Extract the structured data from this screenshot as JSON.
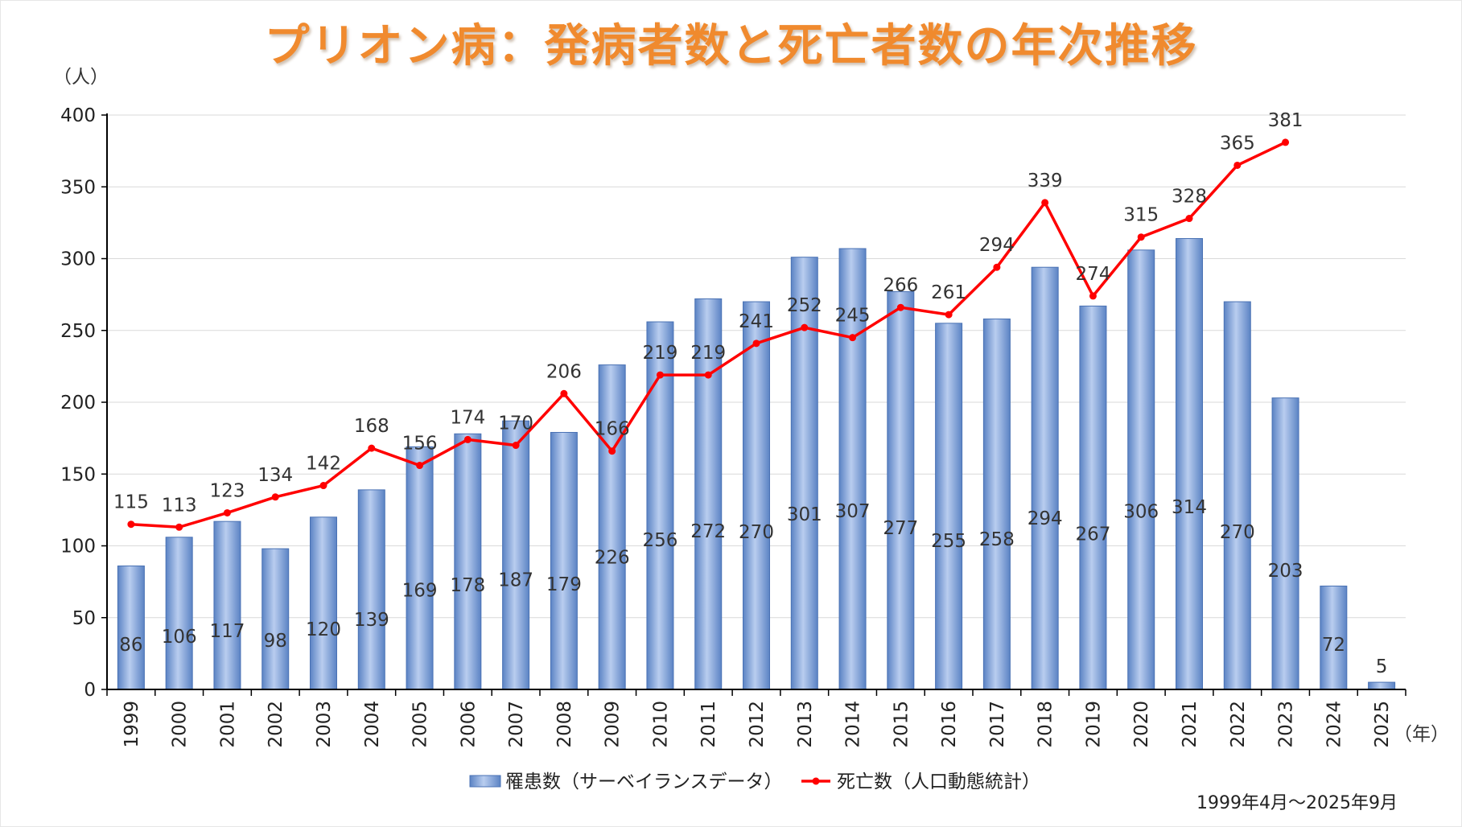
{
  "title": "プリオン病：発病者数と死亡者数の年次推移",
  "footnote": "1999年4月～2025年9月",
  "chart_data": {
    "type": "bar",
    "title": "プリオン病：発病者数と死亡者数の年次推移",
    "ylabel": "（人）",
    "xlabel": "（年）",
    "ylim": [
      0,
      400
    ],
    "yticks": [
      0,
      50,
      100,
      150,
      200,
      250,
      300,
      350,
      400
    ],
    "grid": true,
    "legend": "bottom",
    "categories": [
      "1999",
      "2000",
      "2001",
      "2002",
      "2003",
      "2004",
      "2005",
      "2006",
      "2007",
      "2008",
      "2009",
      "2010",
      "2011",
      "2012",
      "2013",
      "2014",
      "2015",
      "2016",
      "2017",
      "2018",
      "2019",
      "2020",
      "2021",
      "2022",
      "2023",
      "2024",
      "2025"
    ],
    "series": [
      {
        "name": "罹患数（サーベイランスデータ）",
        "type": "bar",
        "color": "#7a9fd6",
        "values": [
          86,
          106,
          117,
          98,
          120,
          139,
          169,
          178,
          187,
          179,
          226,
          256,
          272,
          270,
          301,
          307,
          277,
          255,
          258,
          294,
          267,
          306,
          314,
          270,
          203,
          72,
          5
        ]
      },
      {
        "name": "死亡数（人口動態統計）",
        "type": "line",
        "color": "#ff0000",
        "values": [
          115,
          113,
          123,
          134,
          142,
          168,
          156,
          174,
          170,
          206,
          166,
          219,
          219,
          241,
          252,
          245,
          266,
          261,
          294,
          339,
          274,
          315,
          328,
          365,
          381,
          null,
          null
        ]
      }
    ]
  }
}
